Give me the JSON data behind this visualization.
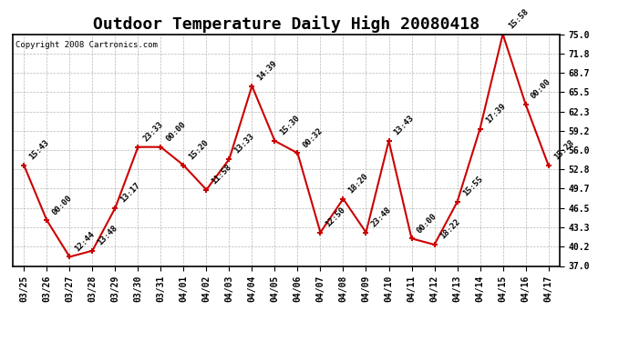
{
  "title": "Outdoor Temperature Daily High 20080418",
  "copyright": "Copyright 2008 Cartronics.com",
  "x_labels": [
    "03/25",
    "03/26",
    "03/27",
    "03/28",
    "03/29",
    "03/30",
    "03/31",
    "04/01",
    "04/02",
    "04/03",
    "04/04",
    "04/05",
    "04/06",
    "04/07",
    "04/08",
    "04/09",
    "04/10",
    "04/11",
    "04/12",
    "04/13",
    "04/14",
    "04/15",
    "04/16",
    "04/17"
  ],
  "y_values": [
    53.5,
    44.5,
    38.5,
    39.5,
    46.5,
    56.5,
    56.5,
    53.5,
    49.5,
    54.5,
    66.5,
    57.5,
    55.5,
    42.5,
    48.0,
    42.5,
    57.5,
    41.5,
    40.5,
    47.5,
    59.5,
    75.0,
    63.5,
    53.5
  ],
  "time_labels": [
    "15:43",
    "00:00",
    "12:44",
    "13:48",
    "13:17",
    "23:33",
    "00:00",
    "15:20",
    "11:58",
    "13:33",
    "14:39",
    "15:30",
    "00:32",
    "12:50",
    "18:20",
    "23:48",
    "13:43",
    "00:00",
    "18:22",
    "15:55",
    "17:39",
    "15:58",
    "00:00",
    "15:28"
  ],
  "ylim": [
    37.0,
    75.0
  ],
  "yticks": [
    37.0,
    40.2,
    43.3,
    46.5,
    49.7,
    52.8,
    56.0,
    59.2,
    62.3,
    65.5,
    68.7,
    71.8,
    75.0
  ],
  "line_color": "#cc0000",
  "marker_color": "#cc0000",
  "bg_color": "#ffffff",
  "grid_color": "#999999",
  "title_fontsize": 13,
  "tick_fontsize": 7,
  "annot_fontsize": 6.5
}
